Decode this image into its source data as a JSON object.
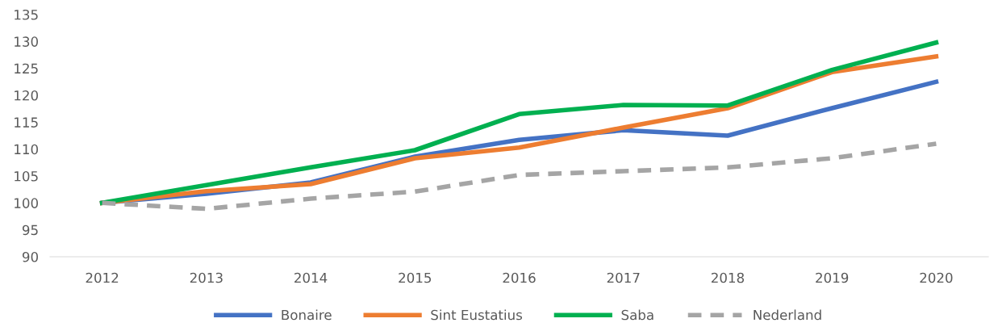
{
  "chart_data": {
    "type": "line",
    "categories": [
      "2012",
      "2013",
      "2014",
      "2015",
      "2016",
      "2017",
      "2018",
      "2019",
      "2020"
    ],
    "series": [
      {
        "name": "Bonaire",
        "color": "#4472c4",
        "line_style": "solid",
        "values": [
          100,
          101.7,
          103.8,
          108.6,
          111.7,
          113.5,
          112.5,
          117.6,
          122.5
        ]
      },
      {
        "name": "Sint Eustatius",
        "color": "#ed7d31",
        "line_style": "solid",
        "values": [
          100,
          102.2,
          103.5,
          108.3,
          110.3,
          114.0,
          117.6,
          124.3,
          127.2
        ]
      },
      {
        "name": "Saba",
        "color": "#00b050",
        "line_style": "solid",
        "values": [
          100,
          103.3,
          106.6,
          109.8,
          116.5,
          118.2,
          118.1,
          124.7,
          129.8
        ]
      },
      {
        "name": "Nederland",
        "color": "#a5a5a5",
        "line_style": "dashed",
        "values": [
          100,
          98.9,
          100.8,
          102.1,
          105.2,
          105.9,
          106.6,
          108.3,
          111.0
        ]
      }
    ],
    "ylim": [
      90,
      135
    ],
    "yticks": [
      90,
      95,
      100,
      105,
      110,
      115,
      120,
      125,
      130,
      135
    ],
    "grid": false,
    "legend": "bottom",
    "marker": "none"
  }
}
